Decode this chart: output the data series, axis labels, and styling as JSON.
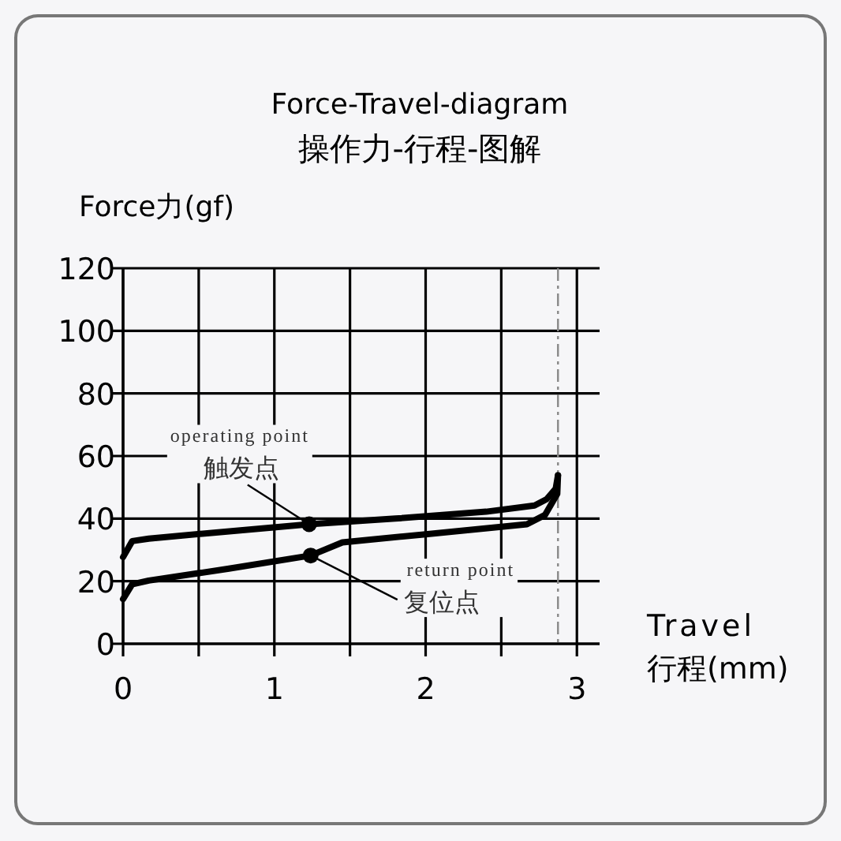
{
  "chart_data": {
    "type": "line",
    "title": "Force-Travel-diagram",
    "subtitle": "操作力-行程-图解",
    "xlabel": "Travel\n行程(mm)",
    "ylabel": "Force力(gf)",
    "xlim": [
      0,
      3.15
    ],
    "ylim": [
      0,
      120
    ],
    "xticks": [
      0,
      {
        "value": 0.5,
        "label": null
      },
      1,
      {
        "value": 1.5,
        "label": null
      },
      2,
      {
        "value": 2.5,
        "label": null
      },
      3
    ],
    "yticks": [
      0,
      20,
      40,
      60,
      80,
      100,
      120
    ],
    "grid": true,
    "marker": "none",
    "line_style": "solid",
    "series": [
      {
        "color": "#000000",
        "x": [
          0,
          0.06,
          0.17,
          0.6,
          1.23,
          1.8,
          2.4,
          2.72,
          2.8,
          2.86,
          2.875
        ],
        "values": [
          27.7,
          32.8,
          33.6,
          35.5,
          38.2,
          40,
          42.2,
          44.2,
          46.2,
          49.6,
          53.8
        ]
      },
      {
        "color": "#000000",
        "x": [
          0,
          0.06,
          0.17,
          0.7,
          1.24,
          1.45,
          2.0,
          2.67,
          2.79,
          2.87,
          2.875
        ],
        "values": [
          14.3,
          19,
          20.2,
          24,
          28.2,
          32.4,
          35,
          38.2,
          41.2,
          47.9,
          53.8
        ]
      },
      {
        "type": "scatter",
        "color": "#000000",
        "marker": "circle",
        "x": [
          1.23,
          1.24
        ],
        "values": [
          38.2,
          28.2
        ]
      }
    ],
    "ref_lines": [
      {
        "axis": "x",
        "value": 2.875,
        "color": "#888888",
        "line_style": "dashed"
      }
    ],
    "annotations": [
      {
        "text": "operating point\n触发点",
        "x": 1.23,
        "y": 38.2
      },
      {
        "text": "return point\n复位点",
        "x": 1.24,
        "y": 28.2
      }
    ]
  }
}
